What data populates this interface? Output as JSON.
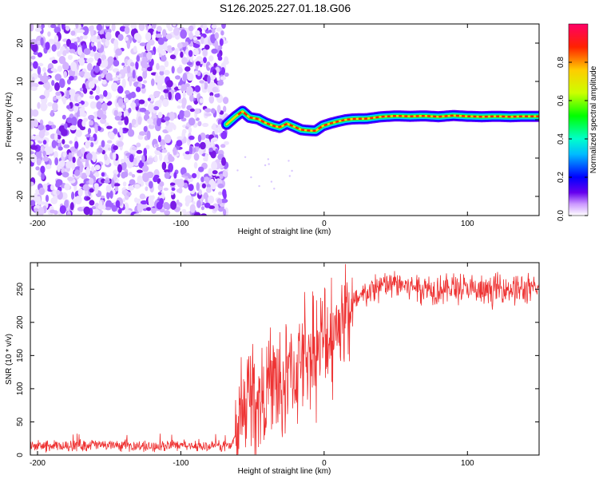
{
  "title": "S126.2025.227.01.18.G06",
  "chart_data": [
    {
      "type": "heatmap",
      "name": "spectrogram",
      "xlabel": "Height of straight line (km)",
      "ylabel": "Frequency (Hz)",
      "xlim": [
        -205,
        150
      ],
      "ylim": [
        -25,
        25
      ],
      "xticks": [
        -200,
        -100,
        0,
        100
      ],
      "xtick_labels": [
        "-200",
        "-100",
        "0",
        "100"
      ],
      "yticks": [
        -20,
        -10,
        0,
        10,
        20
      ],
      "ytick_labels": [
        "-20",
        "-10",
        "0",
        "10",
        "20"
      ],
      "noise_region_km": [
        -205,
        -68
      ],
      "signal_start_km": -68,
      "frequency_track": {
        "x": [
          -68,
          -62,
          -57,
          -52,
          -46,
          -41,
          -36,
          -31,
          -26,
          -21,
          -16,
          -11,
          -6,
          -1,
          4,
          9,
          15,
          20,
          30,
          40,
          50,
          60,
          70,
          80,
          90,
          100,
          110,
          120,
          130,
          140,
          150
        ],
        "y": [
          -1.2,
          0.8,
          2.2,
          0.6,
          0.2,
          -0.8,
          -1.5,
          -2.0,
          -1.0,
          -1.8,
          -2.6,
          -2.8,
          -2.9,
          -1.6,
          -1.0,
          -0.5,
          0.0,
          0.2,
          0.3,
          0.8,
          1.0,
          0.9,
          1.0,
          0.8,
          1.1,
          0.9,
          0.8,
          0.9,
          0.8,
          0.9,
          0.9
        ]
      },
      "colorbar": {
        "label": "Normalized spectral amplitude",
        "range": [
          0,
          1
        ],
        "ticks": [
          0.0,
          0.2,
          0.4,
          0.6,
          0.8
        ],
        "tick_labels": [
          "0.0",
          "0.2",
          "0.4",
          "0.6",
          "0.8"
        ]
      }
    },
    {
      "type": "line",
      "name": "snr",
      "xlabel": "Height of straight line (km)",
      "ylabel": "SNR (10 * v/v)",
      "xlim": [
        -205,
        150
      ],
      "ylim": [
        0,
        290
      ],
      "xticks": [
        -200,
        -100,
        0,
        100
      ],
      "xtick_labels": [
        "-200",
        "-100",
        "0",
        "100"
      ],
      "yticks": [
        0,
        50,
        100,
        150,
        200,
        250
      ],
      "ytick_labels": [
        "0",
        "50",
        "100",
        "150",
        "200",
        "250"
      ],
      "series": [
        {
          "name": "SNR",
          "color": "#ee3333",
          "x": [
            -205,
            -180,
            -160,
            -140,
            -120,
            -100,
            -80,
            -65,
            -60,
            -55,
            -50,
            -45,
            -40,
            -35,
            -30,
            -25,
            -20,
            -15,
            -10,
            -5,
            0,
            5,
            10,
            15,
            20,
            25,
            30,
            40,
            50,
            60,
            70,
            80,
            90,
            100,
            110,
            120,
            130,
            140,
            150
          ],
          "y": [
            14,
            13,
            16,
            14,
            13,
            14,
            13,
            15,
            35,
            75,
            95,
            80,
            100,
            110,
            95,
            130,
            120,
            160,
            150,
            160,
            170,
            185,
            200,
            215,
            225,
            235,
            245,
            255,
            258,
            255,
            252,
            250,
            252,
            250,
            245,
            250,
            252,
            248,
            250
          ]
        }
      ]
    }
  ]
}
